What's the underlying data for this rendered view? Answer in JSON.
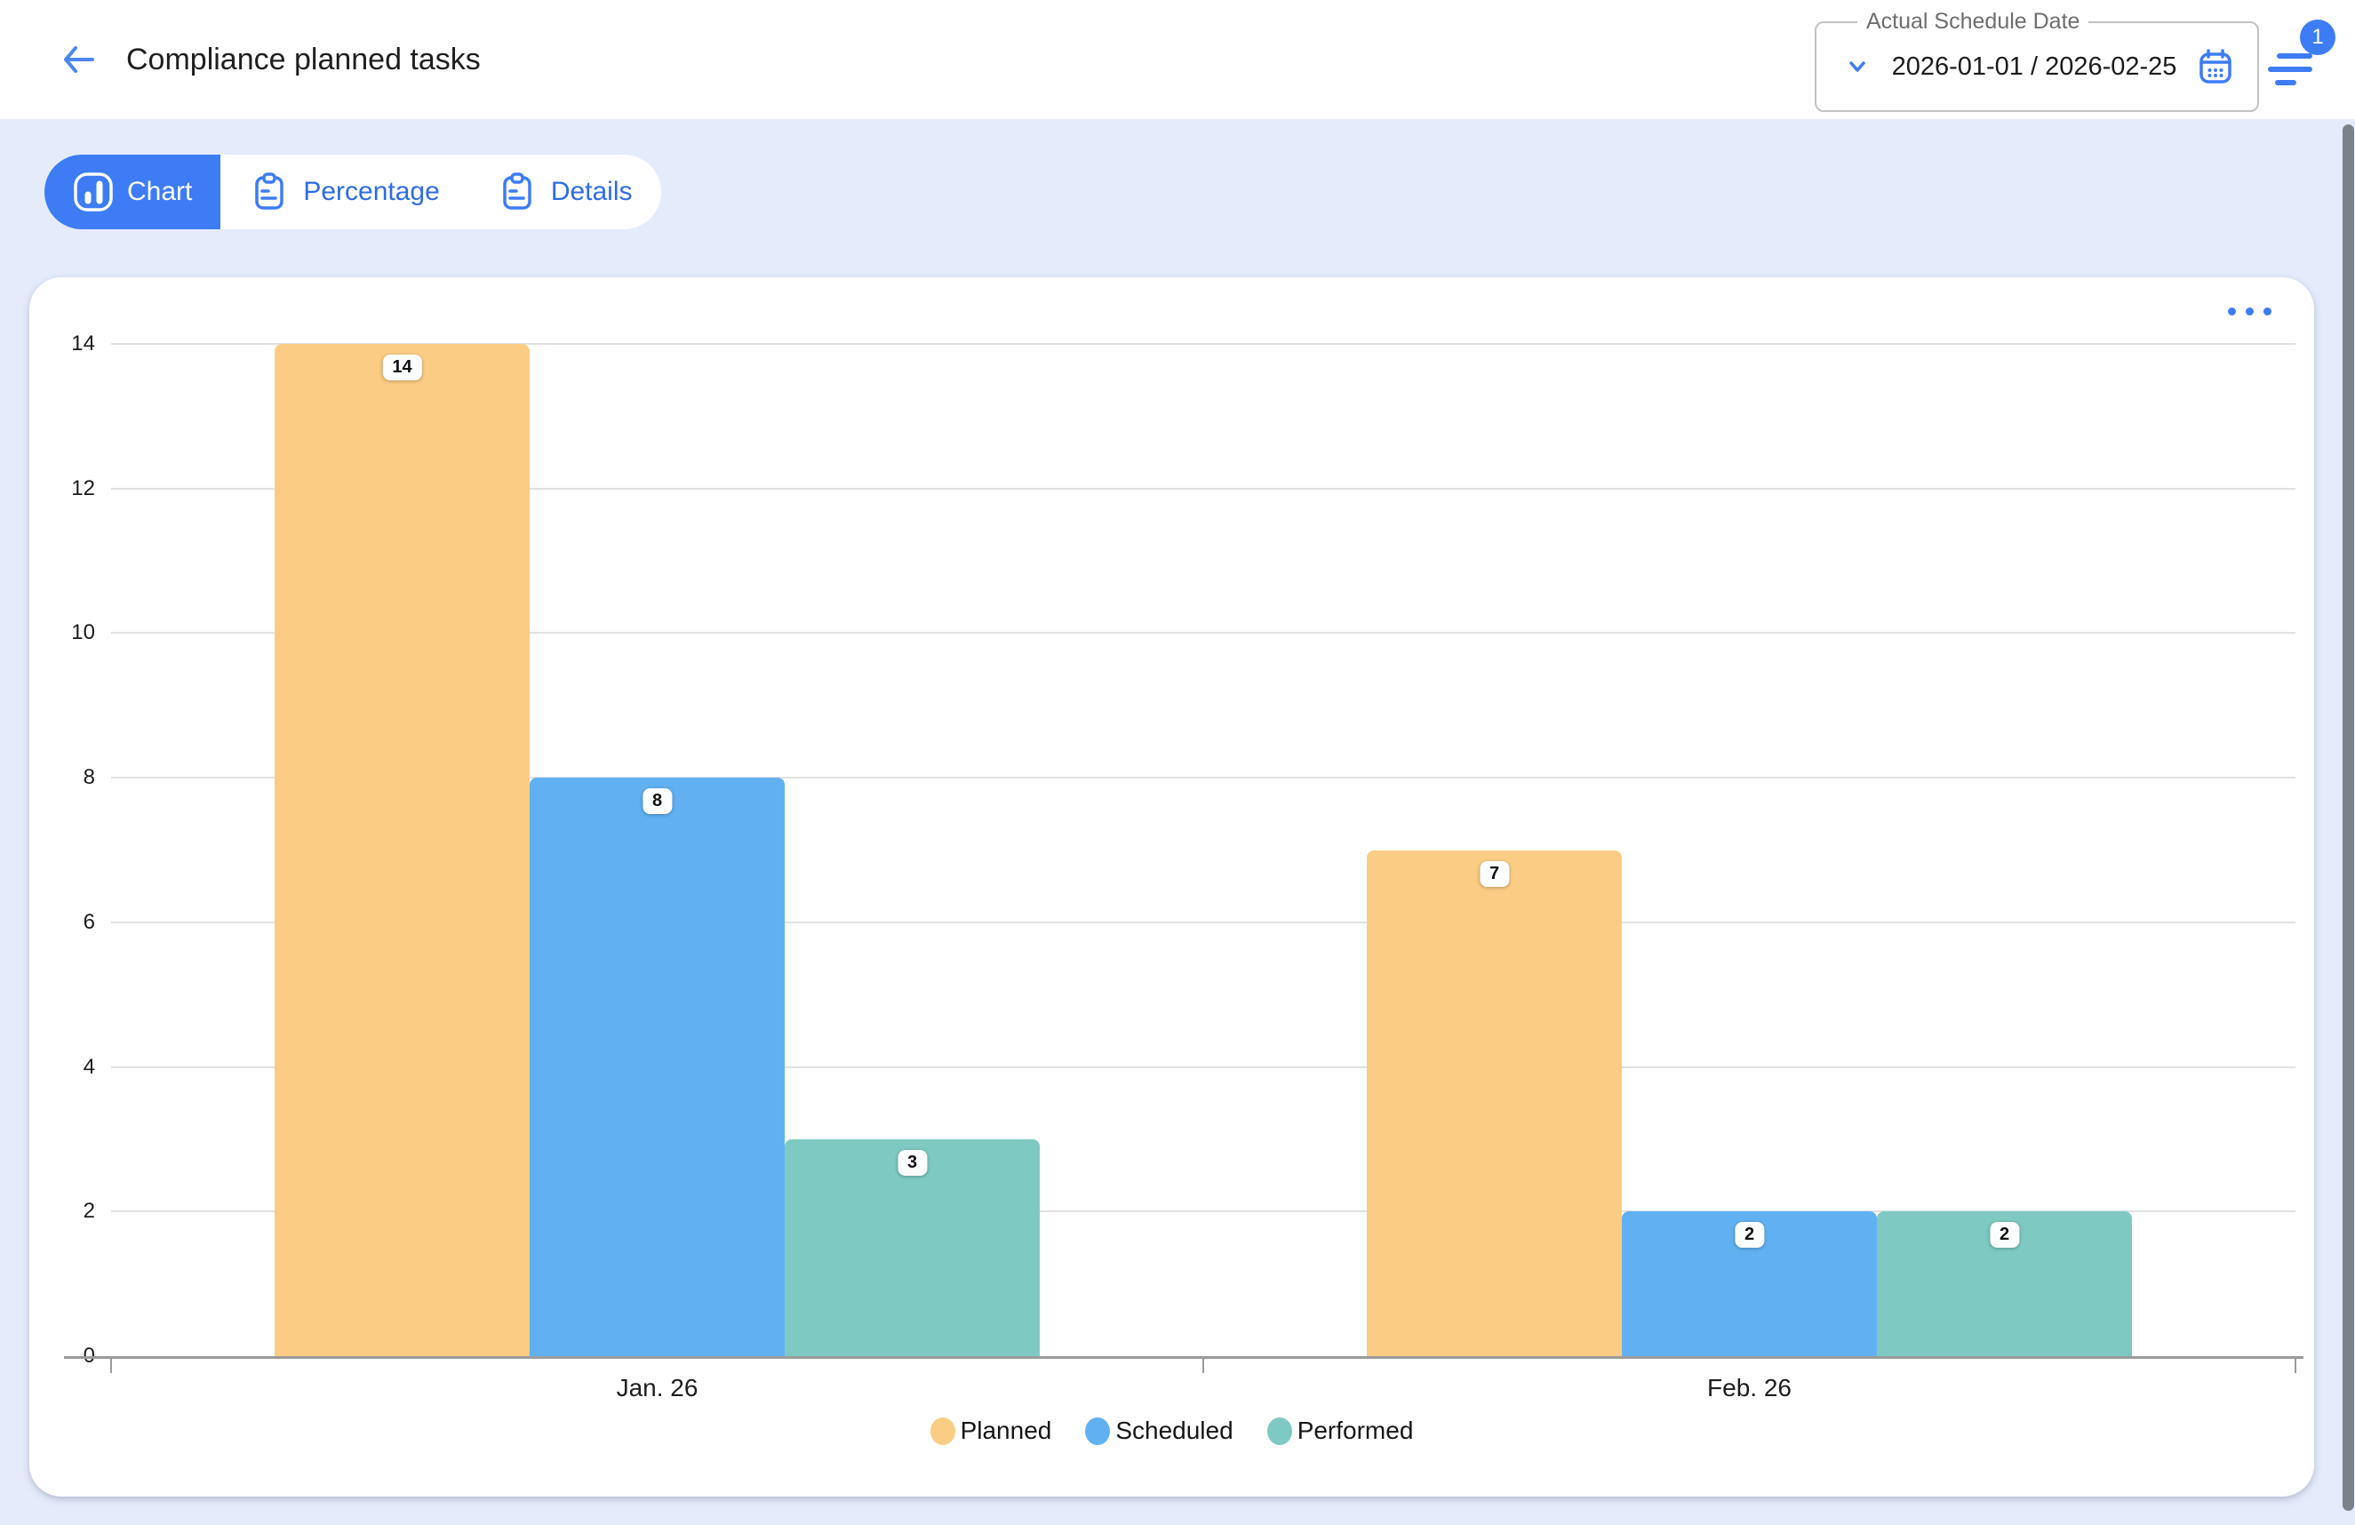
{
  "header": {
    "title": "Compliance planned tasks"
  },
  "date_filter": {
    "label": "Actual Schedule Date",
    "value": "2026-01-01 / 2026-02-25"
  },
  "filter": {
    "badge_count": "1"
  },
  "tabs": [
    {
      "label": "Chart",
      "active": true
    },
    {
      "label": "Percentage",
      "active": false
    },
    {
      "label": "Details",
      "active": false
    }
  ],
  "icons": {
    "back": "arrow-left",
    "date_expand": "chevron-down",
    "date_picker": "calendar",
    "filter": "filter-lines",
    "chart_tab": "bar-chart",
    "percentage_tab": "clipboard",
    "details_tab": "clipboard",
    "card_menu": "ellipsis"
  },
  "colors": {
    "accent_blue": "#3D7CF5",
    "page_background": "#E4EBFB",
    "card_background": "#FFFFFF",
    "gridline": "#E1E1E1",
    "axis_line": "#9B9B9B",
    "scrollbar_thumb": "#7C828A",
    "planned_bar": "#FBCD84",
    "scheduled_bar": "#61B1F2",
    "performed_bar": "#7ECAC2"
  },
  "chart_data": {
    "type": "bar",
    "title": "",
    "xlabel": "",
    "ylabel": "",
    "categories": [
      "Jan. 26",
      "Feb. 26"
    ],
    "series": [
      {
        "name": "Planned",
        "color": "#FBCD84",
        "values": [
          14,
          7
        ]
      },
      {
        "name": "Scheduled",
        "color": "#61B1F2",
        "values": [
          8,
          2
        ]
      },
      {
        "name": "Performed",
        "color": "#7ECAC2",
        "values": [
          3,
          2
        ]
      }
    ],
    "ylim": [
      0,
      14
    ],
    "yticks": [
      0,
      2,
      4,
      6,
      8,
      10,
      12,
      14
    ],
    "grid": true,
    "legend_position": "bottom",
    "data_labels": true
  }
}
